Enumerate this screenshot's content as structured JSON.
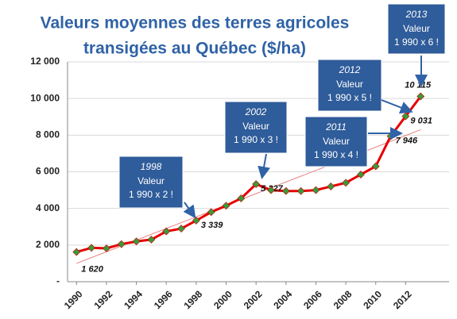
{
  "chart_data": {
    "type": "line",
    "title_lines": [
      "Valeurs moyennes des terres agricoles",
      "transigées au Québec ($/ha)"
    ],
    "x": [
      1990,
      1991,
      1992,
      1993,
      1994,
      1995,
      1996,
      1997,
      1998,
      1999,
      2000,
      2001,
      2002,
      2003,
      2004,
      2005,
      2006,
      2007,
      2008,
      2009,
      2010,
      2011,
      2012,
      2013
    ],
    "series": [
      {
        "color": "#e60000",
        "marker_color": "#3a9a3a",
        "values": [
          1620,
          1850,
          1820,
          2050,
          2200,
          2300,
          2750,
          2900,
          3339,
          3800,
          4150,
          4550,
          5327,
          5000,
          4950,
          4950,
          5000,
          5200,
          5400,
          5850,
          6300,
          7946,
          9031,
          10115
        ],
        "value_labels": [
          "1 620",
          null,
          null,
          null,
          null,
          null,
          null,
          null,
          "3 339",
          null,
          null,
          null,
          "5 327",
          null,
          null,
          null,
          null,
          null,
          null,
          null,
          null,
          "7 946",
          "9 031",
          "10 115"
        ]
      }
    ],
    "trendline": {
      "color": "#e88080",
      "x": [
        1990,
        2013
      ],
      "values": [
        1000,
        8300
      ]
    },
    "xlim": [
      1989.4,
      2014.9
    ],
    "xticks": [
      1990,
      1992,
      1994,
      1996,
      1998,
      2000,
      2002,
      2004,
      2006,
      2008,
      2010,
      2012
    ],
    "ylim": [
      0,
      12000
    ],
    "yticks": [
      {
        "value": 0,
        "label": "-"
      },
      {
        "value": 2000,
        "label": "2 000"
      },
      {
        "value": 4000,
        "label": "4 000"
      },
      {
        "value": 6000,
        "label": "6 000"
      },
      {
        "value": 8000,
        "label": "8 000"
      },
      {
        "value": 10000,
        "label": "10 000"
      },
      {
        "value": 12000,
        "label": "12 000"
      }
    ],
    "grid": true,
    "annotations": [
      {
        "year": "1998",
        "lines": [
          "Valeur",
          "1 990 x 2 !"
        ]
      },
      {
        "year": "2002",
        "lines": [
          "Valeur",
          "1 990 x 3 !"
        ]
      },
      {
        "year": "2011",
        "lines": [
          "Valeur",
          "1 990 x 4 !"
        ]
      },
      {
        "year": "2012",
        "lines": [
          "Valeur",
          "1 990 x 5 !"
        ]
      },
      {
        "year": "2013",
        "lines": [
          "Valeur",
          "1 990 x 6 !"
        ]
      }
    ]
  }
}
